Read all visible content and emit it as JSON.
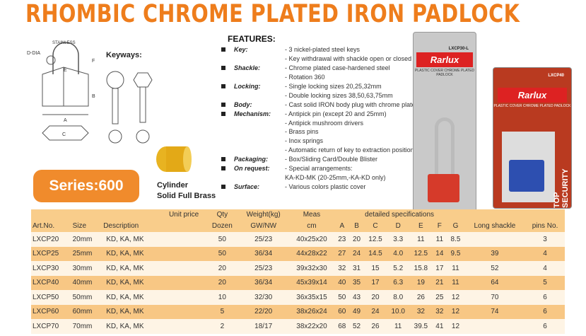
{
  "title": "RHOMBIC CHROME PLATED IRON PADLOCK",
  "diagram": {
    "labels": [
      "D-DIA",
      "STAINLESS",
      "E",
      "F",
      "B",
      "A",
      "C",
      "G"
    ],
    "keyways_label": "Keyways:"
  },
  "series_label": "Series:600",
  "cylinder": {
    "line1": "Cylinder",
    "line2": "Solid Full Brass"
  },
  "features": {
    "heading": "FEATURES:",
    "rows": [
      {
        "label": "Key:",
        "value": "- 3 nickel-plated steel keys"
      },
      {
        "label": "",
        "value": "- Key withdrawal with shackle open or closed"
      },
      {
        "label": "Shackle:",
        "value": "- Chrome plated case-hardened steel"
      },
      {
        "label": "",
        "value": "- Rotation 360"
      },
      {
        "label": "Locking:",
        "value": "- Single locking sizes 20,25,32mm"
      },
      {
        "label": "",
        "value": "- Double locking sizes 38,50,63,75mm"
      },
      {
        "label": "Body:",
        "value": "- Cast solid IRON body plug with chrome plated"
      },
      {
        "label": "Mechanism:",
        "value": "- Antipick pin (except 20 and 25mm)"
      },
      {
        "label": "",
        "value": "- Antipick mushroom drivers"
      },
      {
        "label": "",
        "value": "- Brass pins"
      },
      {
        "label": "",
        "value": "- Inox springs"
      },
      {
        "label": "",
        "value": "- Automatic return of key to extraction position"
      },
      {
        "label": "Packaging:",
        "value": "- Box/Sliding Card/Double Blister"
      },
      {
        "label": "On request:",
        "value": "- Special arrangements:"
      },
      {
        "label": "",
        "value": "KA-KD-MK  (20-25mm,-KA-KD only)"
      },
      {
        "label": "Surface:",
        "value": "- Various colors plastic cover"
      }
    ]
  },
  "packages": [
    {
      "brand": "Rarlux",
      "code": "LXCP30-L",
      "subtitle": "PLASTIC COVER CHROME PLATED PADLOCK",
      "side": "TOP SECURITY",
      "color": "#d63a2a"
    },
    {
      "brand": "Rarlux",
      "code": "LXCP40",
      "subtitle": "PLASTIC COVER CHROME PLATED PADLOCK",
      "side": "TOP SECURITY",
      "color": "#2d4fb0"
    }
  ],
  "table": {
    "headers": {
      "art": "Art.No.",
      "size": "Size",
      "desc": "Description",
      "price": "Unit price",
      "qty1": "Qty",
      "qty2": "Dozen",
      "w1": "Weight(kg)",
      "w2": "GW/NW",
      "m1": "Meas",
      "m2": "cm",
      "spec": "detailed specifications",
      "A": "A",
      "B": "B",
      "C": "C",
      "D": "D",
      "E": "E",
      "F": "F",
      "G": "G",
      "long": "Long shackle",
      "pins": "pins No."
    },
    "rows": [
      [
        "LXCP20",
        "20mm",
        "KD, KA, MK",
        "",
        "50",
        "25/23",
        "40x25x20",
        "23",
        "20",
        "12.5",
        "3.3",
        "11",
        "11",
        "8.5",
        "",
        "3"
      ],
      [
        "LXCP25",
        "25mm",
        "KD, KA, MK",
        "",
        "50",
        "36/34",
        "44x28x22",
        "27",
        "24",
        "14.5",
        "4.0",
        "12.5",
        "14",
        "9.5",
        "39",
        "4"
      ],
      [
        "LXCP30",
        "30mm",
        "KD, KA, MK",
        "",
        "20",
        "25/23",
        "39x32x30",
        "32",
        "31",
        "15",
        "5.2",
        "15.8",
        "17",
        "11",
        "52",
        "4"
      ],
      [
        "LXCP40",
        "40mm",
        "KD, KA, MK",
        "",
        "20",
        "36/34",
        "45x39x14",
        "40",
        "35",
        "17",
        "6.3",
        "19",
        "21",
        "11",
        "64",
        "5"
      ],
      [
        "LXCP50",
        "50mm",
        "KD, KA, MK",
        "",
        "10",
        "32/30",
        "36x35x15",
        "50",
        "43",
        "20",
        "8.0",
        "26",
        "25",
        "12",
        "70",
        "6"
      ],
      [
        "LXCP60",
        "60mm",
        "KD, KA, MK",
        "",
        "5",
        "22/20",
        "38x26x24",
        "60",
        "49",
        "24",
        "10.0",
        "32",
        "32",
        "12",
        "74",
        "6"
      ],
      [
        "LXCP70",
        "70mm",
        "KD, KA, MK",
        "",
        "2",
        "18/17",
        "38x22x20",
        "68",
        "52",
        "26",
        "11",
        "39.5",
        "41",
        "12",
        "",
        "6"
      ]
    ]
  }
}
